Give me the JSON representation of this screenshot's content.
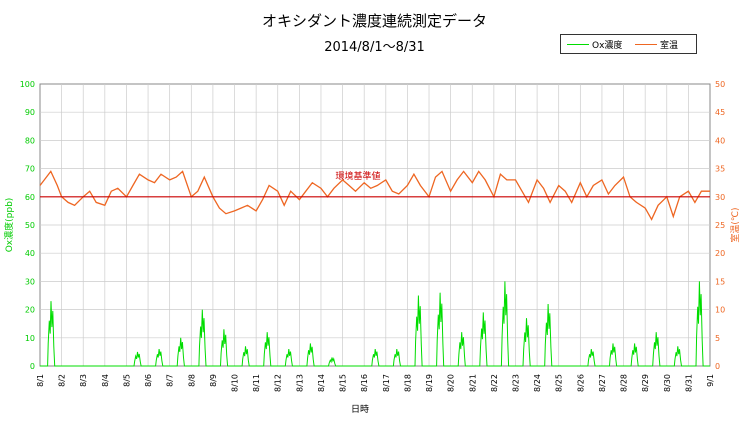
{
  "chart_data": {
    "type": "line",
    "title": "オキシダント濃度連続測定データ",
    "subtitle": "2014/8/1～8/31",
    "xlabel": "日時",
    "ylabel_left": "Ox濃度(ppb)",
    "ylabel_right": "室温(℃)",
    "ylim_left": [
      0,
      100
    ],
    "ylim_right": [
      0,
      50
    ],
    "y_ticks_left": [
      "0",
      "10",
      "20",
      "30",
      "40",
      "50",
      "60",
      "70",
      "80",
      "90",
      "100"
    ],
    "y_ticks_right": [
      "0",
      "5",
      "10",
      "15",
      "20",
      "25",
      "30",
      "35",
      "40",
      "45",
      "50"
    ],
    "categories": [
      "8/1",
      "8/2",
      "8/3",
      "8/4",
      "8/5",
      "8/6",
      "8/7",
      "8/8",
      "8/9",
      "8/10",
      "8/11",
      "8/12",
      "8/13",
      "8/14",
      "8/15",
      "8/16",
      "8/17",
      "8/18",
      "8/19",
      "8/20",
      "8/21",
      "8/22",
      "8/23",
      "8/24",
      "8/25",
      "8/26",
      "8/27",
      "8/28",
      "8/29",
      "8/30",
      "8/31",
      "9/1"
    ],
    "legend_position": "top-right",
    "grid": true,
    "reference_line": {
      "label": "環境基準値",
      "value": 60,
      "axis": "left",
      "color": "#cc0000"
    },
    "series": [
      {
        "name": "Ox濃度",
        "axis": "left",
        "color": "#00dd00",
        "daily_peak": [
          23,
          0,
          0,
          0,
          5,
          6,
          10,
          20,
          13,
          7,
          12,
          6,
          8,
          3,
          0,
          6,
          6,
          25,
          26,
          12,
          19,
          30,
          17,
          22,
          0,
          6,
          8,
          8,
          12,
          7,
          30
        ]
      },
      {
        "name": "室温",
        "axis": "right",
        "color": "#ee6622",
        "x": [
          0,
          0.2,
          0.5,
          0.8,
          1.0,
          1.3,
          1.6,
          2.0,
          2.3,
          2.6,
          3.0,
          3.3,
          3.6,
          4.0,
          4.3,
          4.6,
          5.0,
          5.3,
          5.6,
          6.0,
          6.3,
          6.6,
          7.0,
          7.3,
          7.6,
          8.0,
          8.3,
          8.6,
          9.0,
          9.3,
          9.6,
          10.0,
          10.3,
          10.6,
          11.0,
          11.3,
          11.6,
          12.0,
          12.3,
          12.6,
          13.0,
          13.3,
          13.6,
          14.0,
          14.3,
          14.6,
          15.0,
          15.3,
          15.6,
          16.0,
          16.3,
          16.6,
          17.0,
          17.3,
          17.6,
          18.0,
          18.3,
          18.6,
          19.0,
          19.3,
          19.6,
          20.0,
          20.3,
          20.6,
          21.0,
          21.3,
          21.6,
          22.0,
          22.3,
          22.6,
          23.0,
          23.3,
          23.6,
          24.0,
          24.3,
          24.6,
          25.0,
          25.3,
          25.6,
          26.0,
          26.3,
          26.6,
          27.0,
          27.3,
          27.6,
          28.0,
          28.3,
          28.6,
          29.0,
          29.3,
          29.6,
          30.0,
          30.3,
          30.6,
          31.0
        ],
        "y": [
          32,
          33,
          34.5,
          32,
          30,
          29,
          28.5,
          30,
          31,
          29,
          28.5,
          31,
          31.5,
          30,
          32,
          34,
          33,
          32.5,
          34,
          33,
          33.5,
          34.5,
          30,
          31,
          33.5,
          30,
          28,
          27,
          27.5,
          28,
          28.5,
          27.5,
          29.5,
          32,
          31,
          28.5,
          31,
          29.5,
          31,
          32.5,
          31.5,
          30,
          31.5,
          33,
          32,
          31,
          32.5,
          31.5,
          32,
          33,
          31,
          30.5,
          32,
          34,
          32,
          30,
          33.5,
          34.5,
          31,
          33,
          34.5,
          32.5,
          34.5,
          33,
          30,
          34,
          33,
          33,
          31,
          29,
          33,
          31.5,
          29,
          32,
          31,
          29,
          32.5,
          30,
          32,
          33,
          30.5,
          32,
          33.5,
          30,
          29,
          28,
          26,
          28.5,
          30,
          26.5,
          30,
          31,
          29,
          31,
          31
        ]
      }
    ]
  }
}
